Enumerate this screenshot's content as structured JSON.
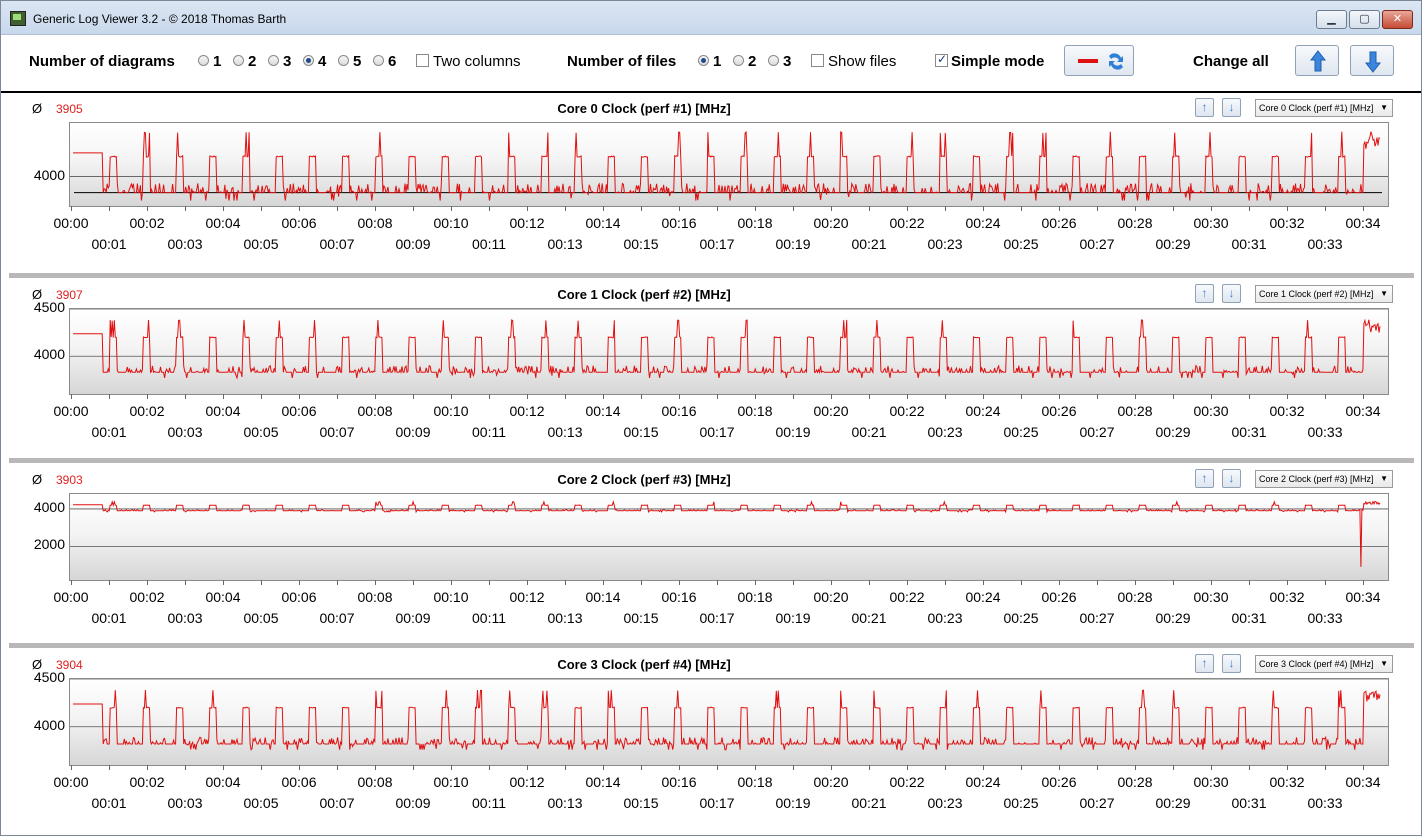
{
  "window": {
    "title": "Generic Log Viewer 3.2 - © 2018 Thomas Barth",
    "min": "▁",
    "max": "▢",
    "close": "✕"
  },
  "toolbar": {
    "num_diagrams_label": "Number of diagrams",
    "diagram_options": [
      "1",
      "2",
      "3",
      "4",
      "5",
      "6"
    ],
    "diagram_selected": "4",
    "two_columns_label": "Two columns",
    "num_files_label": "Number of files",
    "file_options": [
      "1",
      "2",
      "3"
    ],
    "file_selected": "1",
    "show_files_label": "Show files",
    "simple_mode_label": "Simple mode",
    "change_all_label": "Change all"
  },
  "colors": {
    "series": "#e01010",
    "avg": "#e02020",
    "grid": "#555555"
  },
  "icons": {
    "up": "arrow-up-icon",
    "down": "arrow-down-icon",
    "line_swap": "line-swap-icon"
  },
  "x_labels_top": [
    "00:00",
    "00:02",
    "00:04",
    "00:06",
    "00:08",
    "00:10",
    "00:12",
    "00:14",
    "00:16",
    "00:18",
    "00:20",
    "00:22",
    "00:24",
    "00:26",
    "00:28",
    "00:30",
    "00:32",
    "00:34"
  ],
  "x_labels_bottom": [
    "00:01",
    "00:03",
    "00:05",
    "00:07",
    "00:09",
    "00:11",
    "00:13",
    "00:15",
    "00:17",
    "00:19",
    "00:21",
    "00:23",
    "00:25",
    "00:27",
    "00:29",
    "00:31",
    "00:33"
  ],
  "panels": [
    {
      "title": "Core 0 Clock (perf #1) [MHz]",
      "avg_symbol": "Ø",
      "avg": "3905",
      "combo": "Core 0 Clock (perf #1) [MHz]",
      "y_ticks": [
        "4000"
      ],
      "y_tick_values": [
        4000
      ],
      "ymin": 3780,
      "ymax": 4400,
      "ref_line": 3880,
      "base": 3880,
      "peak": 4150
    },
    {
      "title": "Core 1 Clock (perf #2) [MHz]",
      "avg_symbol": "Ø",
      "avg": "3907",
      "combo": "Core 1 Clock (perf #2) [MHz]",
      "y_ticks": [
        "4500",
        "4000"
      ],
      "y_tick_values": [
        4500,
        4000
      ],
      "ymin": 3600,
      "ymax": 4500,
      "ref_line": null,
      "base": 3830,
      "peak": 4200
    },
    {
      "title": "Core 2 Clock (perf #3) [MHz]",
      "avg_symbol": "Ø",
      "avg": "3903",
      "combo": "Core 2 Clock (perf #3) [MHz]",
      "y_ticks": [
        "4000",
        "2000"
      ],
      "y_tick_values": [
        4000,
        2000
      ],
      "ymin": 200,
      "ymax": 4800,
      "ref_line": null,
      "base": 3900,
      "peak": 4200
    },
    {
      "title": "Core 3 Clock (perf #4) [MHz]",
      "avg_symbol": "Ø",
      "avg": "3904",
      "combo": "Core 3 Clock (perf #4) [MHz]",
      "y_ticks": [
        "4500",
        "4000"
      ],
      "y_tick_values": [
        4500,
        4000
      ],
      "ymin": 3600,
      "ymax": 4500,
      "ref_line": null,
      "base": 3820,
      "peak": 4200
    }
  ]
}
